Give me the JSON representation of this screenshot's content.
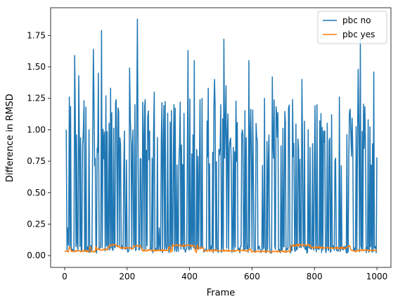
{
  "chart_data": {
    "type": "line",
    "title": "",
    "xlabel": "Frame",
    "ylabel": "Difference in RMSD",
    "xlim": [
      -45,
      1045
    ],
    "ylim": [
      -0.094,
      1.97
    ],
    "x_ticks": [
      0,
      200,
      400,
      600,
      800,
      1000
    ],
    "x_tick_labels": [
      "0",
      "200",
      "400",
      "600",
      "800",
      "1000"
    ],
    "y_ticks": [
      0.0,
      0.25,
      0.5,
      0.75,
      1.0,
      1.25,
      1.5,
      1.75
    ],
    "y_tick_labels": [
      "0.00",
      "0.25",
      "0.50",
      "0.75",
      "1.00",
      "1.25",
      "1.50",
      "1.75"
    ],
    "grid": false,
    "legend_position": "top-right",
    "x_range": [
      0,
      1000
    ],
    "series": [
      {
        "name": "pbc no",
        "color": "#1f77b4",
        "description": "Highly oscillating values between about 0.02 and 1.88 across frames 0-1000",
        "sampled_peaks": [
          [
            5,
            1.0
          ],
          [
            10,
            0.22
          ],
          [
            15,
            1.26
          ],
          [
            25,
            0.05
          ],
          [
            32,
            1.59
          ],
          [
            40,
            0.1
          ],
          [
            45,
            1.43
          ],
          [
            55,
            0.04
          ],
          [
            62,
            1.23
          ],
          [
            70,
            0.05
          ],
          [
            78,
            1.0
          ],
          [
            85,
            0.08
          ],
          [
            92,
            1.64
          ],
          [
            100,
            0.05
          ],
          [
            108,
            1.45
          ],
          [
            113,
            0.06
          ],
          [
            118,
            1.79
          ],
          [
            125,
            0.77
          ],
          [
            132,
            1.27
          ],
          [
            140,
            0.05
          ],
          [
            147,
            1.33
          ],
          [
            155,
            0.04
          ],
          [
            165,
            1.24
          ],
          [
            175,
            0.07
          ],
          [
            185,
            0.05
          ],
          [
            198,
            0.76
          ],
          [
            208,
            1.49
          ],
          [
            215,
            0.05
          ],
          [
            225,
            1.2
          ],
          [
            233,
            1.88
          ],
          [
            240,
            0.05
          ],
          [
            250,
            1.22
          ],
          [
            260,
            0.05
          ],
          [
            270,
            0.76
          ],
          [
            278,
            0.05
          ],
          [
            287,
            1.3
          ],
          [
            295,
            0.05
          ],
          [
            303,
            0.22
          ],
          [
            320,
            0.05
          ],
          [
            340,
            0.05
          ],
          [
            360,
            0.72
          ],
          [
            370,
            1.22
          ],
          [
            380,
            0.05
          ],
          [
            395,
            1.63
          ],
          [
            405,
            0.05
          ],
          [
            415,
            1.55
          ],
          [
            425,
            0.05
          ],
          [
            440,
            1.25
          ],
          [
            450,
            0.05
          ],
          [
            460,
            1.33
          ],
          [
            470,
            0.05
          ],
          [
            480,
            1.4
          ],
          [
            490,
            0.05
          ],
          [
            500,
            1.2
          ],
          [
            510,
            1.72
          ],
          [
            517,
            1.35
          ],
          [
            525,
            0.05
          ],
          [
            540,
            0.86
          ],
          [
            555,
            0.05
          ],
          [
            575,
            0.05
          ],
          [
            590,
            1.55
          ],
          [
            600,
            0.05
          ],
          [
            613,
            1.05
          ],
          [
            625,
            0.05
          ],
          [
            640,
            1.25
          ],
          [
            650,
            0.05
          ],
          [
            665,
            1.42
          ],
          [
            675,
            0.05
          ],
          [
            695,
            0.05
          ],
          [
            715,
            0.05
          ],
          [
            730,
            1.24
          ],
          [
            745,
            0.05
          ],
          [
            760,
            1.4
          ],
          [
            770,
            0.05
          ],
          [
            780,
            1.0
          ],
          [
            790,
            0.05
          ],
          [
            800,
            0.78
          ],
          [
            808,
            1.2
          ],
          [
            815,
            0.05
          ],
          [
            835,
            0.05
          ],
          [
            855,
            1.12
          ],
          [
            870,
            0.05
          ],
          [
            880,
            1.26
          ],
          [
            890,
            0.05
          ],
          [
            910,
            0.78
          ],
          [
            925,
            0.05
          ],
          [
            940,
            1.48
          ],
          [
            947,
            1.72
          ],
          [
            955,
            0.05
          ],
          [
            970,
            0.05
          ],
          [
            982,
            0.72
          ],
          [
            990,
            1.46
          ],
          [
            1000,
            0.78
          ]
        ]
      },
      {
        "name": "pbc yes",
        "color": "#ff7f0e",
        "description": "Low values near 0.02-0.09 across frames 0-1000",
        "range": [
          0.0,
          0.09
        ]
      }
    ]
  }
}
